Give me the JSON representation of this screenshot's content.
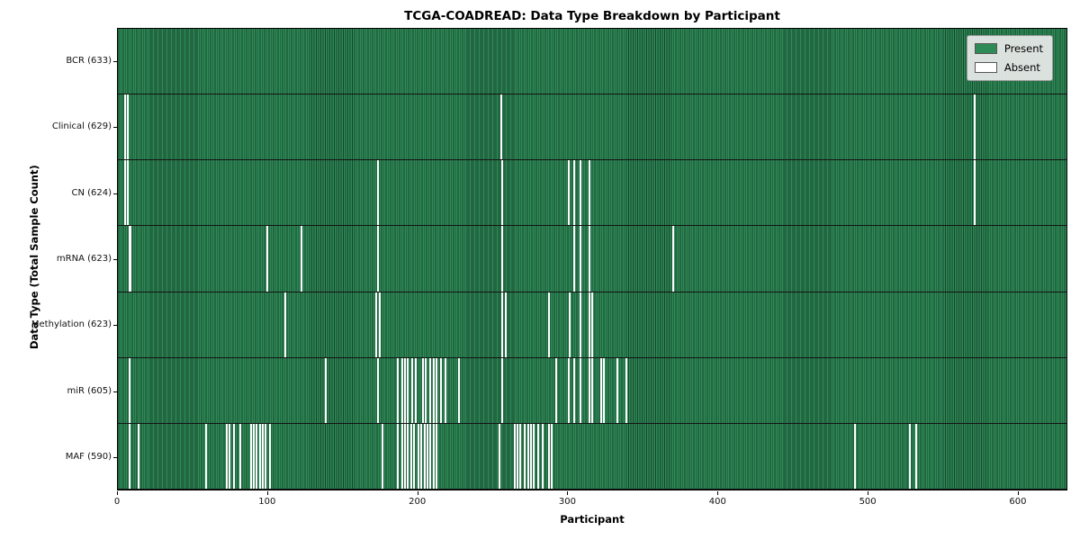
{
  "figure": {
    "background": "#ffffff"
  },
  "chart_data": {
    "type": "heatmap",
    "title": "TCGA-COADREAD: Data Type Breakdown by Participant",
    "xlabel": "Participant",
    "ylabel": "Data Type (Total Sample Count)",
    "x_range": [
      0,
      633
    ],
    "n_participants": 633,
    "xticks": [
      0,
      100,
      200,
      300,
      400,
      500,
      600
    ],
    "grid": false,
    "colors": {
      "present_fill": "#2e8b57",
      "present_edge": "#17432b",
      "absent_fill": "#ffffff",
      "row_separator": "#131313"
    },
    "legend": {
      "position": "upper-right",
      "entries": [
        {
          "label": "Present",
          "color": "#2e8b57"
        },
        {
          "label": "Absent",
          "color": "#ffffff"
        }
      ]
    },
    "rows": [
      {
        "label": "BCR (633)",
        "name": "BCR",
        "present_count": 633,
        "absent_participants": []
      },
      {
        "label": "Clinical (629)",
        "name": "Clinical",
        "present_count": 629,
        "absent_participants": [
          4,
          6,
          255,
          571
        ]
      },
      {
        "label": "CN (624)",
        "name": "CN",
        "present_count": 624,
        "absent_participants": [
          4,
          6,
          173,
          256,
          300,
          304,
          308,
          314,
          571
        ]
      },
      {
        "label": "mRNA (623)",
        "name": "mRNA",
        "present_count": 623,
        "absent_participants": [
          7,
          8,
          99,
          122,
          173,
          256,
          304,
          308,
          314,
          370
        ]
      },
      {
        "label": "Methylation (623)",
        "name": "Methylation",
        "present_count": 623,
        "absent_participants": [
          111,
          172,
          174,
          256,
          258,
          287,
          301,
          308,
          314,
          316
        ]
      },
      {
        "label": "miR (605)",
        "name": "miR",
        "present_count": 605,
        "absent_participants": [
          7,
          138,
          173,
          186,
          189,
          191,
          193,
          196,
          198,
          203,
          205,
          208,
          210,
          212,
          215,
          218,
          227,
          256,
          292,
          300,
          304,
          308,
          314,
          316,
          322,
          324,
          333,
          339
        ]
      },
      {
        "label": "MAF (590)",
        "name": "MAF",
        "present_count": 590,
        "absent_participants": [
          7,
          13,
          58,
          72,
          74,
          77,
          81,
          88,
          90,
          92,
          94,
          96,
          98,
          101,
          176,
          186,
          189,
          191,
          193,
          195,
          197,
          200,
          202,
          204,
          206,
          208,
          210,
          212,
          254,
          264,
          266,
          268,
          271,
          273,
          275,
          277,
          280,
          283,
          287,
          289,
          491,
          528,
          532
        ]
      }
    ]
  }
}
